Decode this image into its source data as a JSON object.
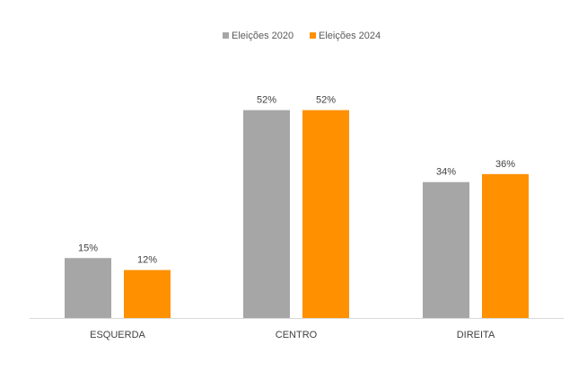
{
  "chart_data": {
    "type": "bar",
    "categories": [
      "ESQUERDA",
      "CENTRO",
      "DIREITA"
    ],
    "series": [
      {
        "name": "Eleições 2020",
        "values": [
          15,
          52,
          34
        ],
        "color": "#a6a6a6"
      },
      {
        "name": "Eleições 2024",
        "values": [
          12,
          52,
          36
        ],
        "color": "#ff9000"
      }
    ],
    "value_suffix": "%",
    "ylim": [
      0,
      60
    ],
    "grid": false,
    "legend_position": "top-center",
    "axis_color": "#d9d9d9"
  }
}
